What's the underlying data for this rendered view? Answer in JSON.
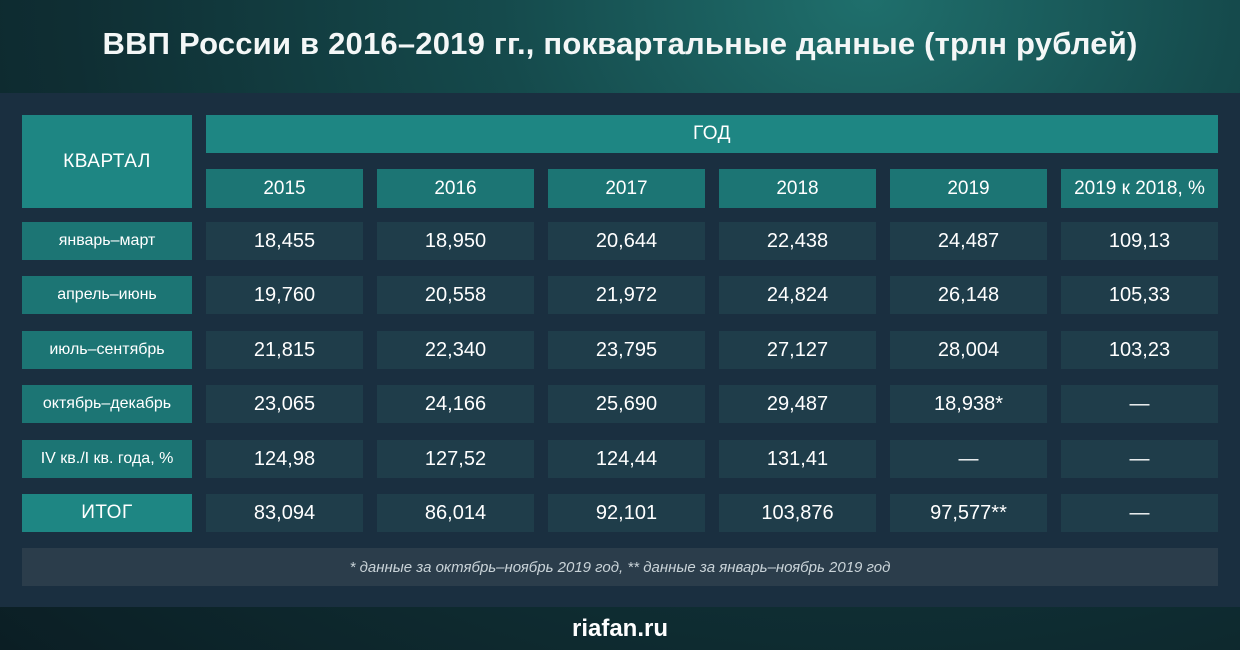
{
  "title": "ВВП России в 2016–2019 гг., поквартальные данные (трлн рублей)",
  "colors": {
    "header": "#1e8683",
    "label_cell": "#1c7574",
    "value_cell": "#1f3d4a",
    "panel": "#1a2f40"
  },
  "chart_data": {
    "type": "table",
    "row_header_label": "КВАРТАЛ",
    "group_header": "ГОД",
    "columns": [
      "2015",
      "2016",
      "2017",
      "2018",
      "2019",
      "2019 к 2018, %"
    ],
    "rows": [
      {
        "label": "январь–март",
        "values": [
          "18,455",
          "18,950",
          "20,644",
          "22,438",
          "24,487",
          "109,13"
        ]
      },
      {
        "label": "апрель–июнь",
        "values": [
          "19,760",
          "20,558",
          "21,972",
          "24,824",
          "26,148",
          "105,33"
        ]
      },
      {
        "label": "июль–сентябрь",
        "values": [
          "21,815",
          "22,340",
          "23,795",
          "27,127",
          "28,004",
          "103,23"
        ]
      },
      {
        "label": "октябрь–декабрь",
        "values": [
          "23,065",
          "24,166",
          "25,690",
          "29,487",
          "18,938*",
          "—"
        ]
      },
      {
        "label": "IV кв./I кв. года, %",
        "values": [
          "124,98",
          "127,52",
          "124,44",
          "131,41",
          "—",
          "—"
        ]
      },
      {
        "label": "ИТОГ",
        "values": [
          "83,094",
          "86,014",
          "92,101",
          "103,876",
          "97,577**",
          "—"
        ]
      }
    ],
    "footnote": "* данные за октябрь–ноябрь 2019 год, ** данные за январь–ноябрь 2019 год"
  },
  "footer": "riafan.ru"
}
